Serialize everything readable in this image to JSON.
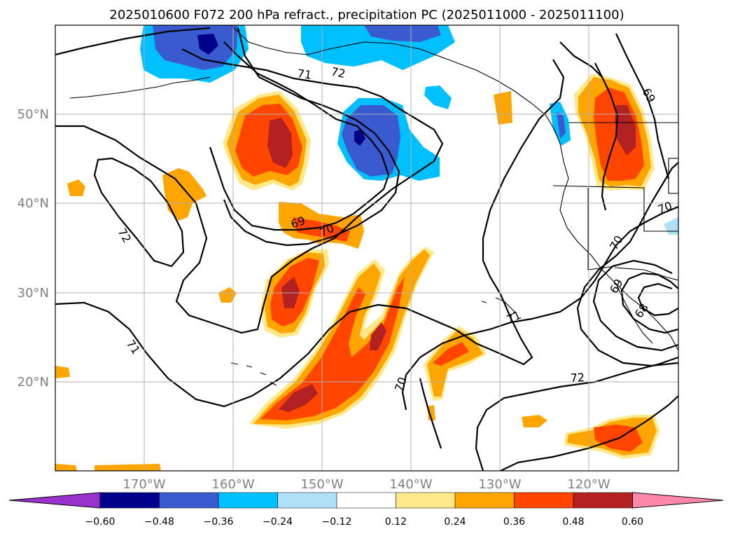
{
  "title": "2025010600 F072 200 hPa refract., precipitation PC (2025011000 - 2025011100)",
  "map": {
    "lon_ticks": [
      "170°W",
      "160°W",
      "150°W",
      "140°W",
      "130°W",
      "120°W"
    ],
    "lat_ticks": [
      "50°N",
      "40°N",
      "30°N",
      "20°N"
    ],
    "contour_labels": [
      "72",
      "71",
      "69",
      "70",
      "72",
      "71",
      "70",
      "72",
      "71",
      "69",
      "70",
      "70",
      "69",
      "68"
    ]
  },
  "colorbar": {
    "colors": [
      "#9932cc",
      "#00008b",
      "#3a5bcf",
      "#00bfff",
      "#b0e0f8",
      "#ffffff",
      "#ffe88a",
      "#ffa500",
      "#ff4500",
      "#b22222",
      "#ff88aa"
    ],
    "labels": [
      "−0.60",
      "−0.48",
      "−0.36",
      "−0.24",
      "−0.12",
      "0.12",
      "0.24",
      "0.36",
      "0.48",
      "0.60"
    ]
  },
  "colors": {
    "positive_low": "#ffe88a",
    "positive_mid": "#ffa500",
    "positive_high": "#ff4500",
    "positive_max": "#b22222",
    "negative_low": "#00bfff",
    "negative_mid": "#3a5bcf",
    "negative_max": "#00008b"
  }
}
